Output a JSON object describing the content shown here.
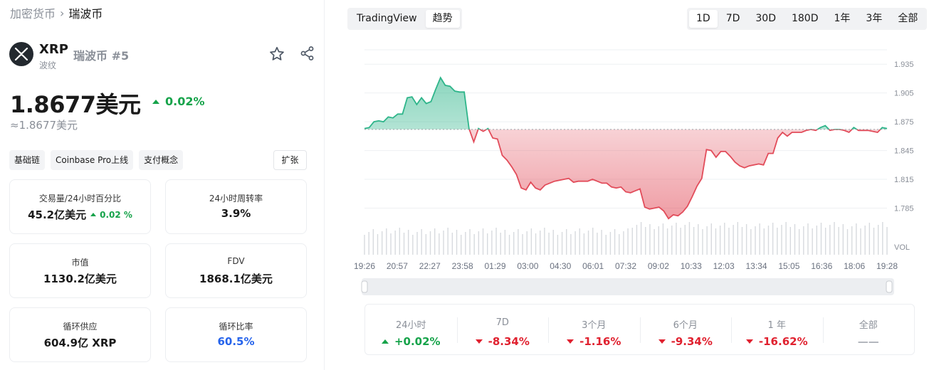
{
  "breadcrumb": {
    "root": "加密货币",
    "current": "瑞波币"
  },
  "coin": {
    "symbol": "XRP",
    "name": "瑞波币 #5",
    "subtitle": "波纹",
    "logo_icon": "xrp-logo-icon"
  },
  "price": {
    "value": "1.8677美元",
    "change": "0.02%",
    "approx": "≈1.8677美元"
  },
  "tags": [
    "基础链",
    "Coinbase Pro上线",
    "支付概念"
  ],
  "expand_label": "扩张",
  "stats": {
    "volume": {
      "label": "交易量/24小时百分比",
      "value": "45.2亿美元",
      "pct": "0.02 %"
    },
    "turnover": {
      "label": "24小时周转率",
      "value": "3.9%"
    },
    "market_cap": {
      "label": "市值",
      "value": "1130.2亿美元"
    },
    "fdv": {
      "label": "FDV",
      "value": "1868.1亿美元"
    },
    "circulating": {
      "label": "循环供应",
      "value": "604.9亿 XRP"
    },
    "circ_ratio": {
      "label": "循环比率",
      "value": "60.5%"
    }
  },
  "chart_tabs": [
    {
      "label": "TradingView",
      "active": false
    },
    {
      "label": "趋势",
      "active": true
    }
  ],
  "ranges": [
    {
      "label": "1D",
      "active": true
    },
    {
      "label": "7D",
      "active": false
    },
    {
      "label": "30D",
      "active": false
    },
    {
      "label": "180D",
      "active": false
    },
    {
      "label": "1年",
      "active": false
    },
    {
      "label": "3年",
      "active": false
    },
    {
      "label": "全部",
      "active": false
    }
  ],
  "colors": {
    "up": "#16a34a",
    "down": "#e0212f",
    "line_up": "#2eb58a",
    "line_down": "#e24c5a"
  },
  "chart_data": {
    "type": "area",
    "baseline": 1.867,
    "ylim": [
      1.772,
      1.95
    ],
    "y_ticks": [
      "1.935",
      "1.905",
      "1.875",
      "1.845",
      "1.815",
      "1.785"
    ],
    "x_ticks": [
      "19:26",
      "20:57",
      "22:27",
      "23:58",
      "01:29",
      "03:00",
      "04:30",
      "06:01",
      "07:32",
      "09:02",
      "10:33",
      "12:03",
      "13:34",
      "15:05",
      "16:36",
      "18:06",
      "19:28"
    ],
    "volume_label": "VOL",
    "series": [
      {
        "values": [
          1.868,
          1.869,
          1.875,
          1.876,
          1.875,
          1.88,
          1.879,
          1.883,
          1.883,
          1.9,
          1.901,
          1.893,
          1.9,
          1.894,
          1.896,
          1.909,
          1.921,
          1.913,
          1.912,
          1.907,
          1.906,
          1.906,
          1.868,
          1.854,
          1.868,
          1.865,
          1.868,
          1.858,
          1.857,
          1.84,
          1.835,
          1.828,
          1.82,
          1.806,
          1.804,
          1.812,
          1.806,
          1.804,
          1.809,
          1.811,
          1.813,
          1.814,
          1.815,
          1.816,
          1.812,
          1.813,
          1.813,
          1.813,
          1.815,
          1.813,
          1.811,
          1.811,
          1.807,
          1.806,
          1.807,
          1.802,
          1.801,
          1.803,
          1.805,
          1.786,
          1.784,
          1.785,
          1.786,
          1.782,
          1.774,
          1.778,
          1.777,
          1.781,
          1.787,
          1.797,
          1.808,
          1.816,
          1.846,
          1.845,
          1.838,
          1.844,
          1.844,
          1.839,
          1.833,
          1.829,
          1.827,
          1.829,
          1.83,
          1.831,
          1.83,
          1.842,
          1.842,
          1.858,
          1.864,
          1.86,
          1.864,
          1.864,
          1.864,
          1.866,
          1.867,
          1.866,
          1.869,
          1.871,
          1.866,
          1.867,
          1.867,
          1.866,
          1.864,
          1.869,
          1.866,
          1.866,
          1.866,
          1.865,
          1.864,
          1.869,
          1.868
        ]
      }
    ]
  },
  "period_changes": [
    {
      "label": "24小时",
      "value": "+0.02%",
      "dir": "up"
    },
    {
      "label": "7D",
      "value": "-8.34%",
      "dir": "down"
    },
    {
      "label": "3个月",
      "value": "-1.16%",
      "dir": "down"
    },
    {
      "label": "6个月",
      "value": "-9.34%",
      "dir": "down"
    },
    {
      "label": "1 年",
      "value": "-16.62%",
      "dir": "down"
    },
    {
      "label": "全部",
      "value": "——",
      "dir": "none"
    }
  ]
}
